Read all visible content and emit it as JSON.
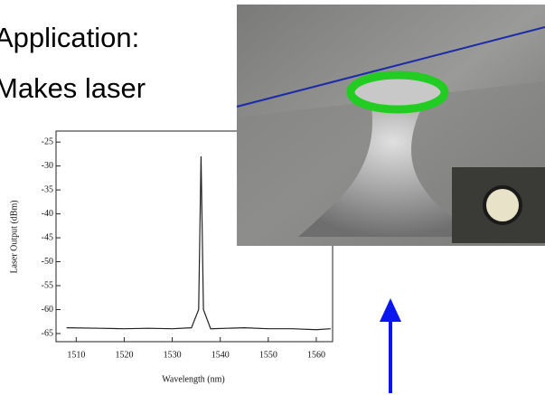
{
  "slide": {
    "lines": [
      "Application:",
      "Makes laser"
    ]
  },
  "chart_data": {
    "type": "line",
    "x_label": "Wavelength (nm)",
    "y_label": "Laser Output (dBm)",
    "x": [
      1508,
      1515,
      1520,
      1525,
      1530,
      1534,
      1535.5,
      1536,
      1536.5,
      1538,
      1545,
      1550,
      1555,
      1560,
      1563
    ],
    "series": [
      {
        "color": "#222222",
        "values": [
          -63.8,
          -63.9,
          -64,
          -63.9,
          -64,
          -63.8,
          -60,
          -28,
          -60,
          -64,
          -63.8,
          -64,
          -64,
          -64.2,
          -64
        ]
      }
    ],
    "xlim": [
      1505.8,
      1563.4
    ],
    "ylim": [
      -66.7,
      -22.7
    ],
    "xticks": [
      1510,
      1520,
      1530,
      1540,
      1550,
      1560
    ],
    "yticks": [
      -25,
      -30,
      -35,
      -40,
      -45,
      -50,
      -55,
      -60,
      -65
    ]
  }
}
